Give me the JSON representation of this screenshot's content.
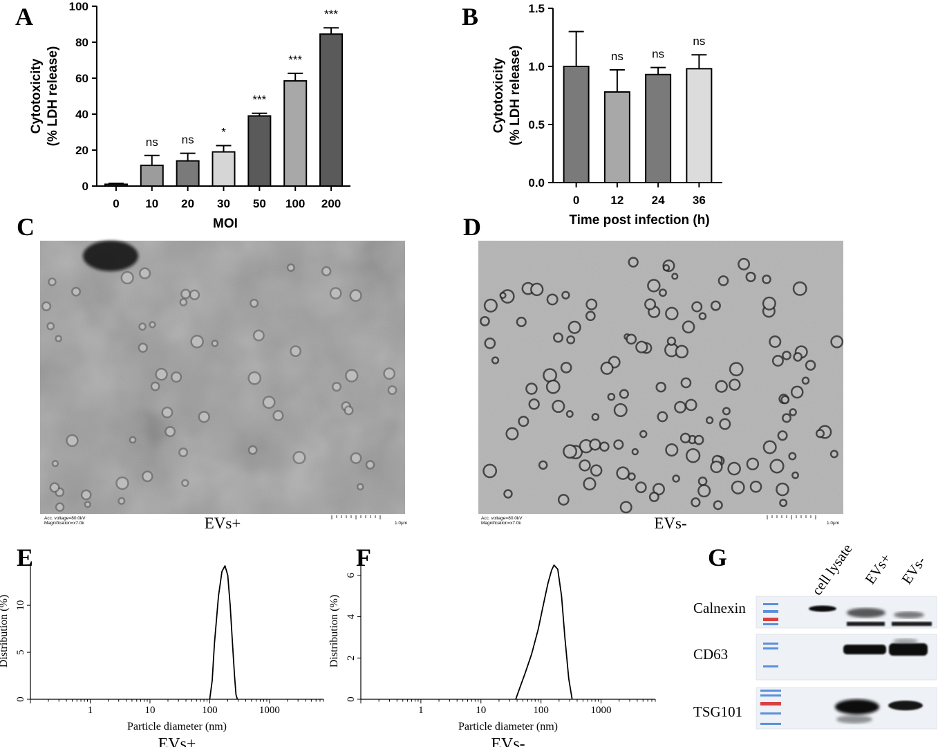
{
  "panel_labels": {
    "A": "A",
    "B": "B",
    "C": "C",
    "D": "D",
    "E": "E",
    "F": "F",
    "G": "G"
  },
  "chart_data": [
    {
      "panel": "A",
      "type": "bar",
      "categories": [
        "0",
        "10",
        "20",
        "30",
        "50",
        "100",
        "200"
      ],
      "values": [
        1,
        11.5,
        14,
        19,
        39,
        58.5,
        84.5
      ],
      "errors": [
        0.5,
        5.5,
        4.2,
        3.5,
        1.5,
        4.2,
        3.5
      ],
      "significance": [
        "",
        "ns",
        "ns",
        "*",
        "***",
        "***",
        "***"
      ],
      "bar_colors": [
        "#5a5a5a",
        "#9c9c9c",
        "#7a7a7a",
        "#d6d6d6",
        "#5a5a5a",
        "#a8a8a8",
        "#5a5a5a"
      ],
      "ylim": [
        0,
        100
      ],
      "yticks": [
        "0",
        "20",
        "40",
        "60",
        "80",
        "100"
      ],
      "xlabel": "MOI",
      "ylabel_line1": "Cytotoxicity",
      "ylabel_line2": "(% LDH release)"
    },
    {
      "panel": "B",
      "type": "bar",
      "categories": [
        "0",
        "12",
        "24",
        "36"
      ],
      "values": [
        1.0,
        0.78,
        0.93,
        0.98
      ],
      "errors": [
        0.3,
        0.19,
        0.06,
        0.12
      ],
      "significance": [
        "",
        "ns",
        "ns",
        "ns"
      ],
      "bar_colors": [
        "#7a7a7a",
        "#a8a8a8",
        "#7a7a7a",
        "#dcdcdc"
      ],
      "ylim": [
        0,
        1.5
      ],
      "yticks": [
        "0.0",
        "0.5",
        "1.0",
        "1.5"
      ],
      "xlabel": "Time post infection (h)",
      "ylabel_line1": "Cytotoxicity",
      "ylabel_line2": "(% LDH release)"
    },
    {
      "panel": "E",
      "type": "line",
      "xscale": "log",
      "xlim": [
        0.1,
        8000
      ],
      "ylim": [
        0,
        14.5
      ],
      "xtick_labels": [
        "1",
        "10",
        "100",
        "1000"
      ],
      "yticks": [
        "0",
        "5",
        "10"
      ],
      "xlabel": "Particle diameter (nm)",
      "ylabel": "Distribution (%)",
      "caption": "EVs+",
      "x": [
        100,
        110,
        120,
        140,
        160,
        180,
        200,
        220,
        240,
        260,
        275,
        290
      ],
      "y": [
        0,
        2,
        6,
        11,
        13.6,
        14.2,
        13.2,
        10,
        6,
        2.5,
        0.5,
        0
      ]
    },
    {
      "panel": "F",
      "type": "line",
      "xscale": "log",
      "xlim": [
        0.1,
        8000
      ],
      "ylim": [
        0,
        6.6
      ],
      "xtick_labels": [
        "1",
        "10",
        "100",
        "1000"
      ],
      "yticks": [
        "0",
        "2",
        "4",
        "6"
      ],
      "xlabel": "Particle diameter (nm)",
      "ylabel": "Distribution (%)",
      "caption": "EVs-",
      "x": [
        38,
        45,
        55,
        70,
        90,
        110,
        130,
        150,
        165,
        190,
        220,
        250,
        290,
        330
      ],
      "y": [
        0,
        0.6,
        1.3,
        2.2,
        3.4,
        4.6,
        5.6,
        6.25,
        6.5,
        6.3,
        5.0,
        3.0,
        1.0,
        0
      ]
    }
  ],
  "panel_C": {
    "caption": "EVs+",
    "info_line1": "Acc. voltage=80.0kV",
    "info_line2": "Magnification=x7.0k",
    "scale_label": "1.0μm"
  },
  "panel_D": {
    "caption": "EVs-",
    "info_line1": "Acc. voltage=80.0kV",
    "info_line2": "Magnification=x7.0k",
    "scale_label": "1.0μm"
  },
  "panel_G": {
    "lane_labels": [
      "cell lysate",
      "EVs+",
      "EVs-"
    ],
    "row_labels": [
      "Calnexin",
      "CD63",
      "TSG101"
    ]
  },
  "colors": {
    "bar_outline": "#000000",
    "em_background": "#9a9a9a",
    "blot_background": "#eef1f6",
    "ladder_blue": "#5b8fd9",
    "ladder_red": "#d94040"
  }
}
